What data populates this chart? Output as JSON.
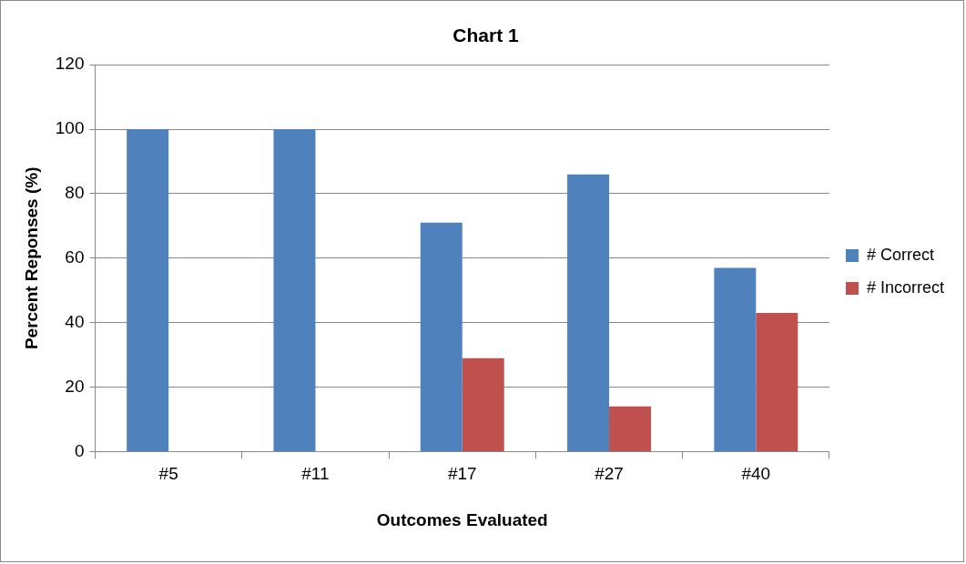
{
  "chart_data": {
    "type": "bar",
    "title": "Chart 1",
    "xlabel": "Outcomes Evaluated",
    "ylabel": "Percent Reponses (%)",
    "categories": [
      "#5",
      "#11",
      "#17",
      "#27",
      "#40"
    ],
    "series": [
      {
        "name": "# Correct",
        "color": "#4f81bd",
        "values": [
          100,
          100,
          71,
          86,
          57
        ]
      },
      {
        "name": "# Incorrect",
        "color": "#c0504d",
        "values": [
          0,
          0,
          29,
          14,
          43
        ]
      }
    ],
    "ylim": [
      0,
      120
    ],
    "yticks": [
      0,
      20,
      40,
      60,
      80,
      100,
      120
    ],
    "grid": "y",
    "legend": "right"
  }
}
